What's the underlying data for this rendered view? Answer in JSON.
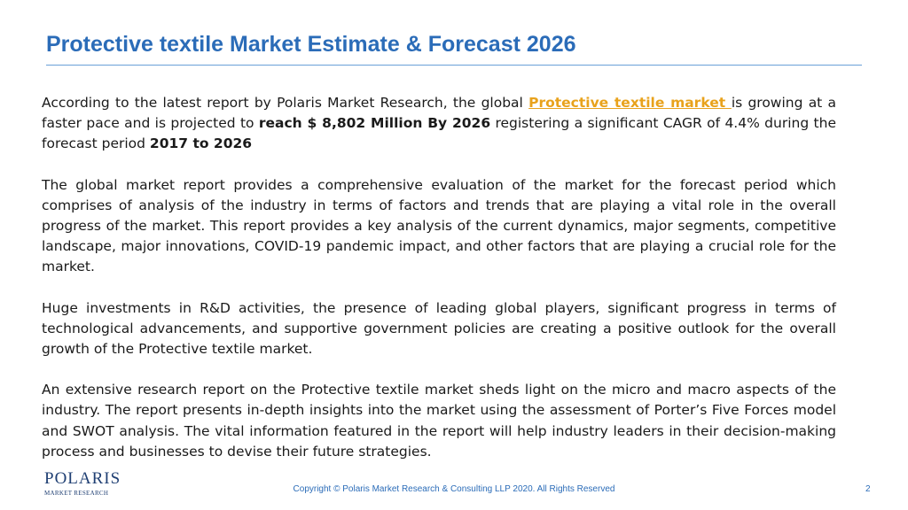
{
  "slide": {
    "title": "Protective textile Market Estimate & Forecast 2026",
    "page_number": "2"
  },
  "paragraphs": {
    "p1": {
      "t1": "According to the latest report by Polaris Market Research, the global ",
      "link": "Protective textile market ",
      "t2": "is growing at a faster pace and is projected to ",
      "b1": "reach $ 8,802 Million By 2026",
      "t3": " registering a significant CAGR of 4.4% during the forecast period ",
      "b2": "2017 to 2026"
    },
    "p2": "The global market report provides a comprehensive evaluation of the market for the forecast period which comprises of analysis of the industry in terms of factors and trends that are playing a vital role in the overall progress of the market. This report provides a key analysis of the current dynamics, major segments, competitive landscape, major innovations, COVID-19 pandemic impact, and other factors that are playing a crucial role for the market.",
    "p3": "Huge investments in R&D activities, the presence of leading global players, significant progress in terms of technological advancements, and supportive government policies are creating a positive outlook for the overall growth of the Protective textile  market.",
    "p4": "An extensive research report on the Protective textile market sheds light on the micro and macro aspects of the industry. The report presents in-depth insights into the market using the assessment of Porter’s Five Forces model and SWOT analysis. The vital information featured in the report will help industry leaders in their decision-making process and businesses to devise their future strategies."
  },
  "logo": {
    "wordmark": "POLARIS",
    "subtitle": "MARKET RESEARCH"
  },
  "footer": {
    "copyright": "Copyright © Polaris Market Research & Consulting LLP 2020. All Rights Reserved"
  },
  "colors": {
    "title": "#2b6cb8",
    "link": "#e8a21c",
    "logo": "#1f3f73"
  }
}
